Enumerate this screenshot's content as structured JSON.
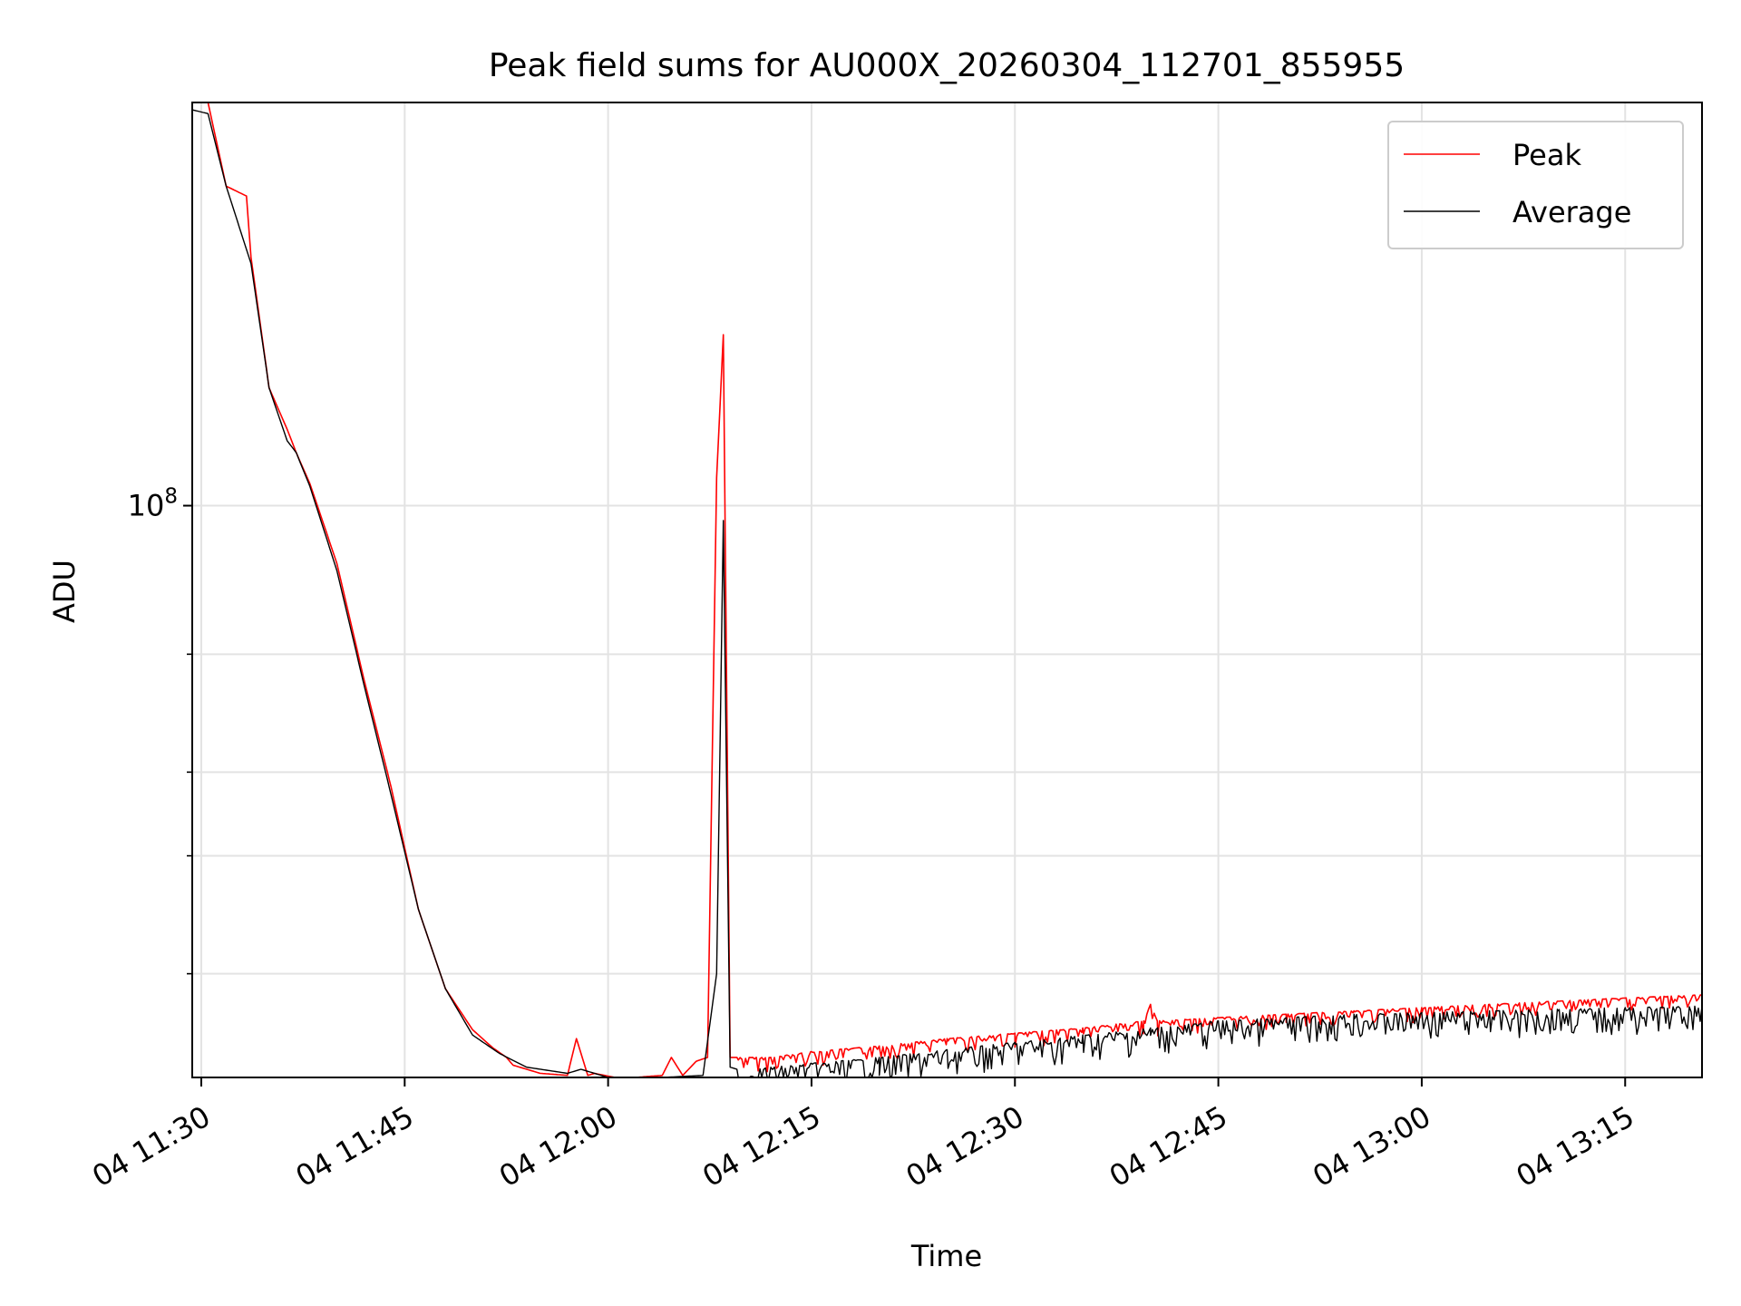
{
  "chart_data": {
    "type": "line",
    "title": "Peak field sums for AU000X_20260304_112701_855955",
    "xlabel": "Time",
    "ylabel": "ADU",
    "y_scale": "log",
    "ylim": [
      14000000,
      400000000
    ],
    "xlim": [
      "2026-03-04 11:29:20",
      "2026-03-04 13:20:40"
    ],
    "grid": true,
    "legend_position": "upper right",
    "x_ticks": [
      "04 11:30",
      "04 11:45",
      "04 12:00",
      "04 12:15",
      "04 12:30",
      "04 12:45",
      "04 13:00",
      "04 13:15"
    ],
    "x_tick_values": [
      "2026-03-04 11:30",
      "2026-03-04 11:45",
      "2026-03-04 12:00",
      "2026-03-04 12:15",
      "2026-03-04 12:30",
      "2026-03-04 12:45",
      "2026-03-04 13:00",
      "2026-03-04 13:15"
    ],
    "y_major_tick": {
      "value": 100000000,
      "base": "10",
      "exponent": "8"
    },
    "y_minor_ticks": [
      20000000,
      30000000,
      40000000,
      60000000
    ],
    "series": [
      {
        "name": "Peak",
        "color": "#ff0000",
        "x": [
          "2026-03-04 11:29:20",
          "2026-03-04 11:30:30",
          "2026-03-04 11:31:50",
          "2026-03-04 11:33:20",
          "2026-03-04 11:33:40",
          "2026-03-04 11:35:00",
          "2026-03-04 11:36:20",
          "2026-03-04 11:37:00",
          "2026-03-04 11:38:00",
          "2026-03-04 11:40:00",
          "2026-03-04 11:42:00",
          "2026-03-04 11:44:00",
          "2026-03-04 11:46:00",
          "2026-03-04 11:48:00",
          "2026-03-04 11:50:00",
          "2026-03-04 11:51:30",
          "2026-03-04 11:52:30",
          "2026-03-04 11:53:00",
          "2026-03-04 11:54:30",
          "2026-03-04 11:55:00",
          "2026-03-04 11:57:00",
          "2026-03-04 11:57:40",
          "2026-03-04 11:58:30",
          "2026-03-04 11:59:00",
          "2026-03-04 12:00:30",
          "2026-03-04 12:02:00",
          "2026-03-04 12:04:00",
          "2026-03-04 12:04:40",
          "2026-03-04 12:05:30",
          "2026-03-04 12:06:30",
          "2026-03-04 12:07:20",
          "2026-03-04 12:08:00",
          "2026-03-04 12:08:30",
          "2026-03-04 12:09:00",
          "2026-03-04 12:09:30",
          "2026-03-04 12:12:00",
          "2026-03-04 12:15:00",
          "2026-03-04 12:20:00",
          "2026-03-04 12:25:00",
          "2026-03-04 12:30:00",
          "2026-03-04 12:35:00",
          "2026-03-04 12:39:30",
          "2026-03-04 12:40:00",
          "2026-03-04 12:40:30",
          "2026-03-04 12:45:00",
          "2026-03-04 12:50:00",
          "2026-03-04 12:55:00",
          "2026-03-04 13:00:00",
          "2026-03-04 13:05:00",
          "2026-03-04 13:10:00",
          "2026-03-04 13:15:00",
          "2026-03-04 13:20:40"
        ],
        "y": [
          400000000,
          400000000,
          300000000,
          290000000,
          235000000,
          150000000,
          130000000,
          120000000,
          108000000,
          82000000,
          55000000,
          38000000,
          25000000,
          19000000,
          16500000,
          15500000,
          15000000,
          14600000,
          14300000,
          14200000,
          14100000,
          16000000,
          14100000,
          14200000,
          14000000,
          14000000,
          14100000,
          15000000,
          14100000,
          14800000,
          15000000,
          110000000,
          180000000,
          15000000,
          15000000,
          15000000,
          15300000,
          15600000,
          16000000,
          16300000,
          16600000,
          17000000,
          18000000,
          17000000,
          17200000,
          17400000,
          17600000,
          17800000,
          18000000,
          18200000,
          18400000,
          18600000
        ]
      },
      {
        "name": "Average",
        "color": "#000000",
        "x": [
          "2026-03-04 11:29:20",
          "2026-03-04 11:30:30",
          "2026-03-04 11:31:50",
          "2026-03-04 11:33:40",
          "2026-03-04 11:35:00",
          "2026-03-04 11:36:20",
          "2026-03-04 11:37:00",
          "2026-03-04 11:38:00",
          "2026-03-04 11:40:00",
          "2026-03-04 11:42:00",
          "2026-03-04 11:44:00",
          "2026-03-04 11:46:00",
          "2026-03-04 11:48:00",
          "2026-03-04 11:50:00",
          "2026-03-04 11:52:00",
          "2026-03-04 11:54:00",
          "2026-03-04 11:57:00",
          "2026-03-04 11:58:00",
          "2026-03-04 12:00:00",
          "2026-03-04 12:04:00",
          "2026-03-04 12:07:00",
          "2026-03-04 12:08:00",
          "2026-03-04 12:08:30",
          "2026-03-04 12:09:00",
          "2026-03-04 12:09:30",
          "2026-03-04 12:12:00",
          "2026-03-04 12:15:00",
          "2026-03-04 12:20:00",
          "2026-03-04 12:25:00",
          "2026-03-04 12:30:00",
          "2026-03-04 12:35:00",
          "2026-03-04 12:40:00",
          "2026-03-04 12:45:00",
          "2026-03-04 12:50:00",
          "2026-03-04 12:55:00",
          "2026-03-04 13:00:00",
          "2026-03-04 13:05:00",
          "2026-03-04 13:10:00",
          "2026-03-04 13:15:00",
          "2026-03-04 13:20:40"
        ],
        "y": [
          390000000,
          385000000,
          300000000,
          230000000,
          150000000,
          125000000,
          120000000,
          107000000,
          80000000,
          54000000,
          37000000,
          25000000,
          19000000,
          16200000,
          15200000,
          14500000,
          14200000,
          14400000,
          14000000,
          14000000,
          14100000,
          20000000,
          95000000,
          14500000,
          14400000,
          14500000,
          14700000,
          15000000,
          15400000,
          15800000,
          16200000,
          16600000,
          17000000,
          17200000,
          17400000,
          17500000,
          17600000,
          17700000,
          17800000,
          17900000
        ]
      }
    ]
  }
}
